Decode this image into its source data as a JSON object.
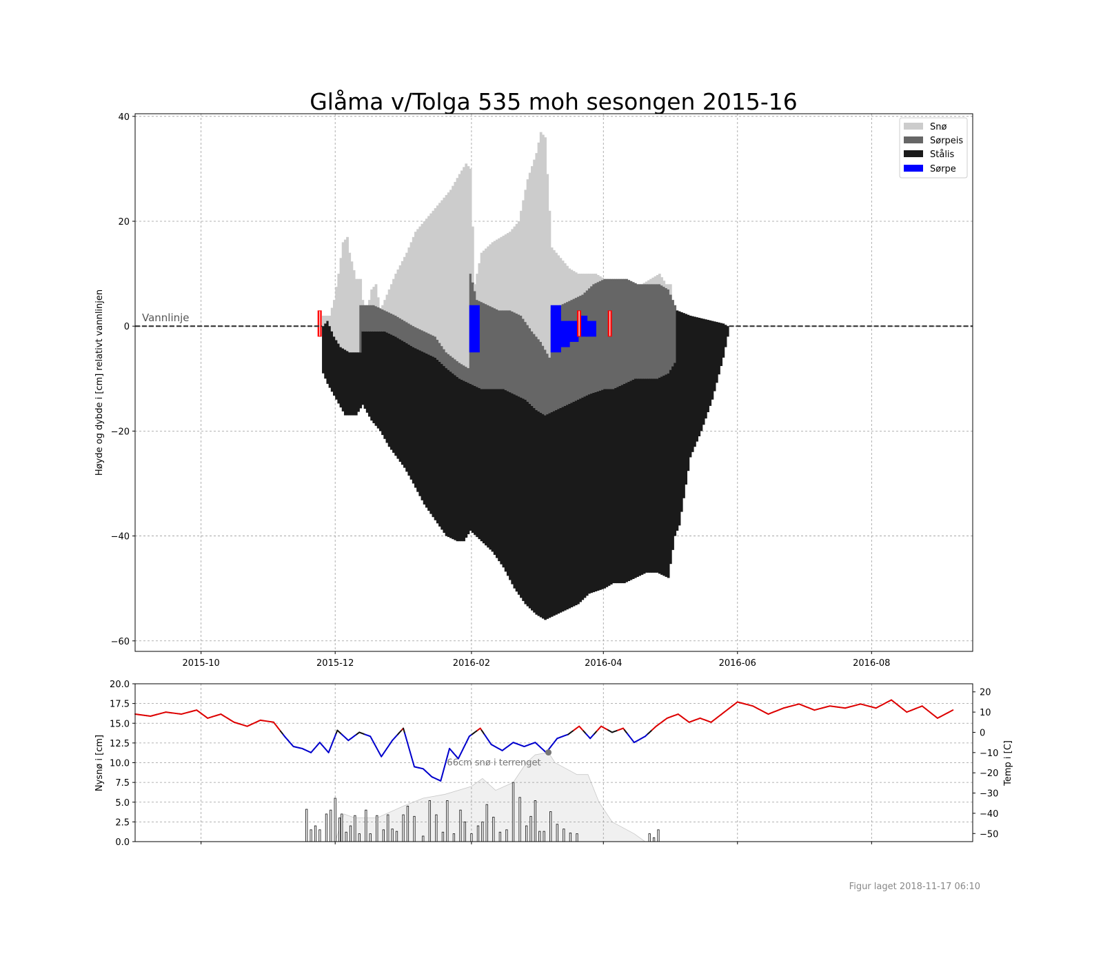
{
  "title": "Glåma v/Tolga 535 moh sesongen 2015-16",
  "footer": "Figur laget 2018-11-17 06:10",
  "colors": {
    "sno": "#cccccc",
    "sorpeis": "#666666",
    "stalis": "#1a1a1a",
    "sorpe": "#0000ff",
    "warm": "#dd0000",
    "cold": "#0000cc",
    "mid": "#111111",
    "snow_terrain": "#f0f0f0",
    "marker": "#ff0000"
  },
  "chart_data": [
    {
      "id": "ice",
      "type": "area",
      "ylabel": "Høyde og dybde i [cm] relativt vannlinjen",
      "ylim": [
        -62,
        40.5
      ],
      "yticks": [
        -60,
        -40,
        -20,
        0,
        20,
        40
      ],
      "xlim": [
        "2015-09-01",
        "2016-09-16"
      ],
      "xticks": [
        "2015-10",
        "2015-12",
        "2016-02",
        "2016-04",
        "2016-06",
        "2016-08"
      ],
      "xtick_dates": [
        "2015-10-01",
        "2015-12-01",
        "2016-02-01",
        "2016-04-01",
        "2016-06-01",
        "2016-08-01"
      ],
      "grid": true,
      "legend_position": "top-right",
      "waterline_label": "Vannlinje",
      "legend": [
        {
          "label": "Snø",
          "color_key": "sno"
        },
        {
          "label": "Sørpeis",
          "color_key": "sorpeis"
        },
        {
          "label": "Stålis",
          "color_key": "stalis"
        },
        {
          "label": "Sørpe",
          "color_key": "sorpe"
        }
      ],
      "ice_start": "2015-11-25",
      "ice_end": "2016-05-27",
      "bottom_profile": {
        "dates": [
          "2015-11-25",
          "2015-11-27",
          "2015-12-01",
          "2015-12-05",
          "2015-12-10",
          "2015-12-13",
          "2015-12-17",
          "2015-12-21",
          "2015-12-25",
          "2016-01-01",
          "2016-01-05",
          "2016-01-10",
          "2016-01-15",
          "2016-01-20",
          "2016-01-25",
          "2016-01-28",
          "2016-01-31",
          "2016-02-05",
          "2016-02-10",
          "2016-02-15",
          "2016-02-20",
          "2016-02-25",
          "2016-03-01",
          "2016-03-05",
          "2016-03-10",
          "2016-03-15",
          "2016-03-20",
          "2016-03-25",
          "2016-04-01",
          "2016-04-05",
          "2016-04-10",
          "2016-04-15",
          "2016-04-20",
          "2016-04-25",
          "2016-04-30",
          "2016-05-03",
          "2016-05-05",
          "2016-05-10",
          "2016-05-15",
          "2016-05-20",
          "2016-05-25",
          "2016-05-27"
        ],
        "values": [
          -9,
          -11,
          -14,
          -17,
          -17,
          -15,
          -18,
          -20,
          -23,
          -27,
          -30,
          -34,
          -37,
          -40,
          -41,
          -41,
          -39,
          -41,
          -43,
          -46,
          -50,
          -53,
          -55,
          -56,
          -55,
          -54,
          -53,
          -51,
          -50,
          -49,
          -49,
          -48,
          -47,
          -47,
          -48,
          -40,
          -38,
          -25,
          -20,
          -14,
          -6,
          -2
        ]
      },
      "stalis_top": {
        "dates": [
          "2015-11-25",
          "2015-11-27",
          "2015-11-30",
          "2015-12-03",
          "2015-12-07",
          "2015-12-12",
          "2015-12-13",
          "2015-12-18",
          "2015-12-23",
          "2015-12-28",
          "2016-01-05",
          "2016-01-10",
          "2016-01-15",
          "2016-01-20",
          "2016-01-26",
          "2016-01-31",
          "2016-02-05",
          "2016-02-10",
          "2016-02-15",
          "2016-02-20",
          "2016-02-25",
          "2016-03-01",
          "2016-03-05",
          "2016-03-10",
          "2016-03-15",
          "2016-03-20",
          "2016-03-25",
          "2016-04-01",
          "2016-04-05",
          "2016-04-10",
          "2016-04-15",
          "2016-04-20",
          "2016-04-25",
          "2016-04-30",
          "2016-05-03",
          "2016-05-04",
          "2016-05-10",
          "2016-05-15",
          "2016-05-20",
          "2016-05-25",
          "2016-05-27"
        ],
        "values": [
          0,
          1,
          -2,
          -4,
          -5,
          -5,
          -1,
          -1,
          -1,
          -2,
          -4,
          -5,
          -6,
          -8,
          -10,
          -11,
          -12,
          -12,
          -12,
          -13,
          -14,
          -16,
          -17,
          -16,
          -15,
          -14,
          -13,
          -12,
          -12,
          -11,
          -10,
          -10,
          -10,
          -9,
          -7,
          3,
          2,
          1.5,
          1,
          0.5,
          0
        ]
      },
      "sorpeis_top": {
        "dates": [
          "2015-12-12",
          "2015-12-13",
          "2015-12-18",
          "2015-12-23",
          "2015-12-28",
          "2016-01-05",
          "2016-01-10",
          "2016-01-15",
          "2016-01-20",
          "2016-01-26",
          "2016-01-30",
          "2016-01-31",
          "2016-02-03",
          "2016-02-08",
          "2016-02-13",
          "2016-02-18",
          "2016-02-23",
          "2016-02-28",
          "2016-03-03",
          "2016-03-07",
          "2016-03-08",
          "2016-03-12",
          "2016-03-17",
          "2016-03-22",
          "2016-03-27",
          "2016-04-01",
          "2016-04-06",
          "2016-04-11",
          "2016-04-16",
          "2016-04-21",
          "2016-04-26",
          "2016-04-30",
          "2016-05-02",
          "2016-05-04"
        ],
        "values": [
          null,
          4,
          4,
          3,
          2,
          0,
          -1,
          -2,
          -5,
          -7,
          -8,
          10,
          5,
          4,
          3,
          3,
          2,
          -1,
          -3,
          -6,
          3,
          4,
          5,
          6,
          8,
          9,
          9,
          9,
          8,
          8,
          8,
          7,
          5,
          3
        ]
      },
      "snow_top": {
        "dates": [
          "2015-11-25",
          "2015-11-28",
          "2015-11-30",
          "2015-12-02",
          "2015-12-04",
          "2015-12-06",
          "2015-12-07",
          "2015-12-10",
          "2015-12-12",
          "2015-12-13",
          "2015-12-15",
          "2015-12-17",
          "2015-12-19",
          "2015-12-21",
          "2015-12-24",
          "2015-12-28",
          "2016-01-02",
          "2016-01-06",
          "2016-01-10",
          "2016-01-14",
          "2016-01-18",
          "2016-01-22",
          "2016-01-26",
          "2016-01-29",
          "2016-01-31",
          "2016-02-02",
          "2016-02-05",
          "2016-02-10",
          "2016-02-14",
          "2016-02-18",
          "2016-02-22",
          "2016-02-26",
          "2016-03-01",
          "2016-03-03",
          "2016-03-05",
          "2016-03-08",
          "2016-03-12",
          "2016-03-16",
          "2016-03-20",
          "2016-03-25",
          "2016-03-28",
          "2016-04-01",
          "2016-04-10",
          "2016-04-18",
          "2016-04-22",
          "2016-04-26",
          "2016-04-29",
          "2016-05-01"
        ],
        "values": [
          null,
          2,
          5,
          10,
          16,
          17,
          14,
          9,
          9,
          5,
          3,
          7,
          8,
          3,
          6,
          10,
          14,
          18,
          20,
          22,
          24,
          26,
          29,
          31,
          30,
          8,
          14,
          16,
          17,
          18,
          20,
          28,
          33,
          37,
          36,
          15,
          13,
          11,
          10,
          10,
          10,
          9,
          8,
          8,
          9,
          10,
          8,
          null
        ]
      },
      "sorpe_events": [
        {
          "date": "2016-01-31",
          "top": 4,
          "bottom": -5
        },
        {
          "date": "2016-03-08",
          "top": 4,
          "bottom": -5
        },
        {
          "date": "2016-03-12",
          "top": 1,
          "bottom": -4
        },
        {
          "date": "2016-03-16",
          "top": 1,
          "bottom": -3
        },
        {
          "date": "2016-03-20",
          "top": 2,
          "bottom": -2
        },
        {
          "date": "2016-03-24",
          "top": 1,
          "bottom": -2
        }
      ],
      "markers": [
        {
          "date": "2015-11-23",
          "top": 3,
          "bottom": -2
        },
        {
          "date": "2016-03-20",
          "top": 3,
          "bottom": -2
        },
        {
          "date": "2016-04-03",
          "top": 3,
          "bottom": -2
        }
      ]
    },
    {
      "id": "weather",
      "type": "bar",
      "ylabel": "Nysnø i [cm]",
      "ylim": [
        0,
        20
      ],
      "yticks": [
        0.0,
        2.5,
        5.0,
        7.5,
        10.0,
        12.5,
        15.0,
        17.5,
        20.0
      ],
      "y2label": "Temp i [C]",
      "y2lim": [
        -54,
        24
      ],
      "y2ticks": [
        -50,
        -40,
        -30,
        -20,
        -10,
        0,
        10,
        20
      ],
      "xlim": [
        "2015-09-01",
        "2016-09-16"
      ],
      "grid": true,
      "annotation": {
        "text": "66cm snø i terrenget",
        "date": "2016-03-07",
        "value": 11.3
      },
      "snow_terrain": {
        "dates": [
          "2015-12-01",
          "2015-12-05",
          "2015-12-10",
          "2015-12-20",
          "2016-01-01",
          "2016-01-10",
          "2016-01-20",
          "2016-02-01",
          "2016-02-06",
          "2016-02-12",
          "2016-02-20",
          "2016-02-26",
          "2016-03-01",
          "2016-03-07",
          "2016-03-10",
          "2016-03-20",
          "2016-03-25",
          "2016-03-30",
          "2016-04-05",
          "2016-04-15",
          "2016-04-20"
        ],
        "values": [
          0,
          3.5,
          3.0,
          3.0,
          4.5,
          5.5,
          6.0,
          7.0,
          8.0,
          6.5,
          7.5,
          10.0,
          11.0,
          11.3,
          10.0,
          8.5,
          8.5,
          5.0,
          2.5,
          1.0,
          0
        ]
      },
      "snowfall": {
        "dates": [
          "2015-11-18",
          "2015-11-20",
          "2015-11-22",
          "2015-11-24",
          "2015-11-27",
          "2015-11-29",
          "2015-12-01",
          "2015-12-03",
          "2015-12-04",
          "2015-12-06",
          "2015-12-08",
          "2015-12-10",
          "2015-12-12",
          "2015-12-15",
          "2015-12-17",
          "2015-12-20",
          "2015-12-23",
          "2015-12-25",
          "2015-12-27",
          "2015-12-29",
          "2016-01-01",
          "2016-01-03",
          "2016-01-06",
          "2016-01-10",
          "2016-01-13",
          "2016-01-16",
          "2016-01-19",
          "2016-01-21",
          "2016-01-24",
          "2016-01-27",
          "2016-01-29",
          "2016-02-01",
          "2016-02-04",
          "2016-02-06",
          "2016-02-08",
          "2016-02-11",
          "2016-02-14",
          "2016-02-17",
          "2016-02-20",
          "2016-02-23",
          "2016-02-26",
          "2016-02-28",
          "2016-03-01",
          "2016-03-03",
          "2016-03-05",
          "2016-03-08",
          "2016-03-11",
          "2016-03-14",
          "2016-03-17",
          "2016-03-20",
          "2016-04-22",
          "2016-04-24",
          "2016-04-26"
        ],
        "values": [
          4.1,
          1.5,
          2.0,
          1.5,
          3.5,
          4.0,
          5.5,
          3.0,
          3.5,
          1.2,
          2.0,
          3.3,
          1.0,
          4.0,
          1.0,
          3.3,
          1.5,
          3.4,
          1.6,
          1.3,
          3.4,
          4.5,
          3.2,
          0.7,
          5.2,
          3.4,
          1.2,
          5.2,
          1.0,
          4.0,
          2.5,
          1.0,
          2.0,
          2.5,
          4.7,
          3.1,
          1.2,
          1.5,
          7.5,
          5.6,
          2.0,
          3.2,
          5.2,
          1.3,
          1.3,
          3.8,
          2.2,
          1.6,
          1.1,
          1.0,
          1.0,
          0.5,
          1.5
        ]
      },
      "temperature": {
        "dates": [
          "2015-09-01",
          "2015-09-08",
          "2015-09-15",
          "2015-09-22",
          "2015-09-29",
          "2015-10-04",
          "2015-10-10",
          "2015-10-16",
          "2015-10-22",
          "2015-10-28",
          "2015-11-03",
          "2015-11-08",
          "2015-11-12",
          "2015-11-16",
          "2015-11-20",
          "2015-11-24",
          "2015-11-28",
          "2015-12-02",
          "2015-12-07",
          "2015-12-12",
          "2015-12-17",
          "2015-12-22",
          "2015-12-27",
          "2016-01-01",
          "2016-01-06",
          "2016-01-10",
          "2016-01-14",
          "2016-01-18",
          "2016-01-22",
          "2016-01-26",
          "2016-01-31",
          "2016-02-05",
          "2016-02-10",
          "2016-02-15",
          "2016-02-20",
          "2016-02-25",
          "2016-03-01",
          "2016-03-06",
          "2016-03-11",
          "2016-03-16",
          "2016-03-21",
          "2016-03-26",
          "2016-03-31",
          "2016-04-05",
          "2016-04-10",
          "2016-04-15",
          "2016-04-20",
          "2016-04-25",
          "2016-04-30",
          "2016-05-05",
          "2016-05-10",
          "2016-05-15",
          "2016-05-20",
          "2016-05-26",
          "2016-06-01",
          "2016-06-08",
          "2016-06-15",
          "2016-06-22",
          "2016-06-29",
          "2016-07-06",
          "2016-07-13",
          "2016-07-20",
          "2016-07-27",
          "2016-08-03",
          "2016-08-10",
          "2016-08-17",
          "2016-08-24",
          "2016-08-31",
          "2016-09-07"
        ],
        "values": [
          9,
          8,
          10,
          9,
          11,
          7,
          9,
          5,
          3,
          6,
          5,
          -2,
          -7,
          -8,
          -10,
          -5,
          -10,
          1,
          -4,
          0,
          -2,
          -12,
          -4,
          2,
          -17,
          -18,
          -22,
          -24,
          -8,
          -13,
          -2,
          2,
          -6,
          -9,
          -5,
          -7,
          -5,
          -10,
          -3,
          -1,
          3,
          -3,
          3,
          0,
          2,
          -5,
          -2,
          3,
          7,
          9,
          5,
          7,
          5,
          10,
          15,
          13,
          9,
          12,
          14,
          11,
          13,
          12,
          14,
          12,
          16,
          10,
          13,
          7,
          11
        ]
      }
    }
  ]
}
